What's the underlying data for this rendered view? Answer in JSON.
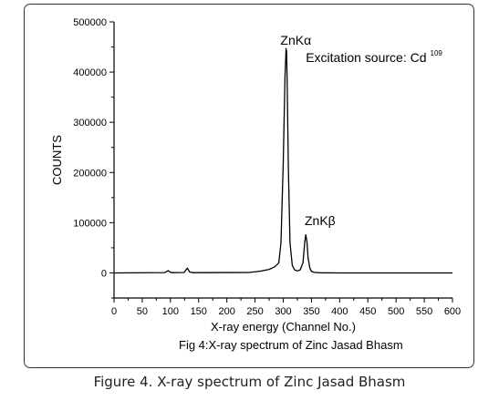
{
  "caption": "Figure 4. X-ray spectrum of Zinc Jasad Bhasm",
  "chart_data": {
    "type": "line",
    "title": "",
    "xlabel": "X-ray energy (Channel No.)",
    "ylabel": "COUNTS",
    "subcaption": "Fig 4:X-ray spectrum of Zinc Jasad Bhasm",
    "xlim": [
      0,
      600
    ],
    "ylim": [
      -50000,
      500000
    ],
    "xticks": [
      0,
      50,
      100,
      150,
      200,
      250,
      300,
      350,
      400,
      450,
      500,
      550,
      600
    ],
    "yticks": [
      0,
      100000,
      200000,
      300000,
      400000,
      500000
    ],
    "grid": false,
    "annotations": [
      {
        "text": "ZnKα",
        "x": 295,
        "y": 455000
      },
      {
        "text": "Excitation source: Cd",
        "superscript": "109",
        "x": 340,
        "y": 420000
      },
      {
        "text": "ZnKβ",
        "x": 338,
        "y": 95000
      }
    ],
    "series": [
      {
        "color": "#000000",
        "x": [
          0,
          90,
          96,
          100,
          105,
          124,
          130,
          134,
          140,
          240,
          260,
          275,
          285,
          292,
          296,
          300,
          303,
          305,
          306,
          307,
          309,
          312,
          316,
          320,
          325,
          330,
          335,
          338,
          340,
          342,
          344,
          347,
          350,
          355,
          365,
          400,
          600
        ],
        "y": [
          0,
          600,
          4500,
          1200,
          400,
          800,
          9500,
          1800,
          400,
          900,
          3500,
          7000,
          12000,
          20000,
          60000,
          220000,
          390000,
          447000,
          440000,
          380000,
          210000,
          60000,
          15000,
          6000,
          4000,
          6000,
          20000,
          60000,
          76000,
          62000,
          30000,
          10000,
          3000,
          1000,
          300,
          0,
          0
        ]
      }
    ]
  }
}
